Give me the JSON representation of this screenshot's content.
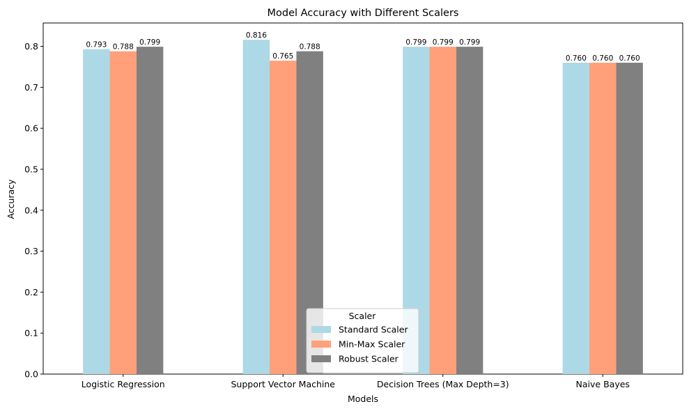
{
  "chart_data": {
    "type": "bar",
    "title": "Model Accuracy with Different Scalers",
    "xlabel": "Models",
    "ylabel": "Accuracy",
    "categories": [
      "Logistic Regression",
      "Support Vector Machine",
      "Decision Trees (Max Depth=3)",
      "Naive Bayes"
    ],
    "series": [
      {
        "name": "Standard Scaler",
        "color": "#add8e6",
        "values": [
          0.793,
          0.816,
          0.799,
          0.76
        ],
        "labels": [
          "0.793",
          "0.816",
          "0.799",
          "0.760"
        ]
      },
      {
        "name": "Min-Max Scaler",
        "color": "#ffa07a",
        "values": [
          0.788,
          0.765,
          0.799,
          0.76
        ],
        "labels": [
          "0.788",
          "0.765",
          "0.799",
          "0.760"
        ]
      },
      {
        "name": "Robust Scaler",
        "color": "#808080",
        "values": [
          0.799,
          0.788,
          0.799,
          0.76
        ],
        "labels": [
          "0.799",
          "0.788",
          "0.799",
          "0.760"
        ]
      }
    ],
    "ylim": [
      0,
      0.857
    ],
    "yticks": [
      0.0,
      0.1,
      0.2,
      0.3,
      0.4,
      0.5,
      0.6,
      0.7,
      0.8
    ],
    "ytick_labels": [
      "0.0",
      "0.1",
      "0.2",
      "0.3",
      "0.4",
      "0.5",
      "0.6",
      "0.7",
      "0.8"
    ],
    "grid": false,
    "legend": {
      "title": "Scaler",
      "placement": "bottom-center"
    }
  }
}
